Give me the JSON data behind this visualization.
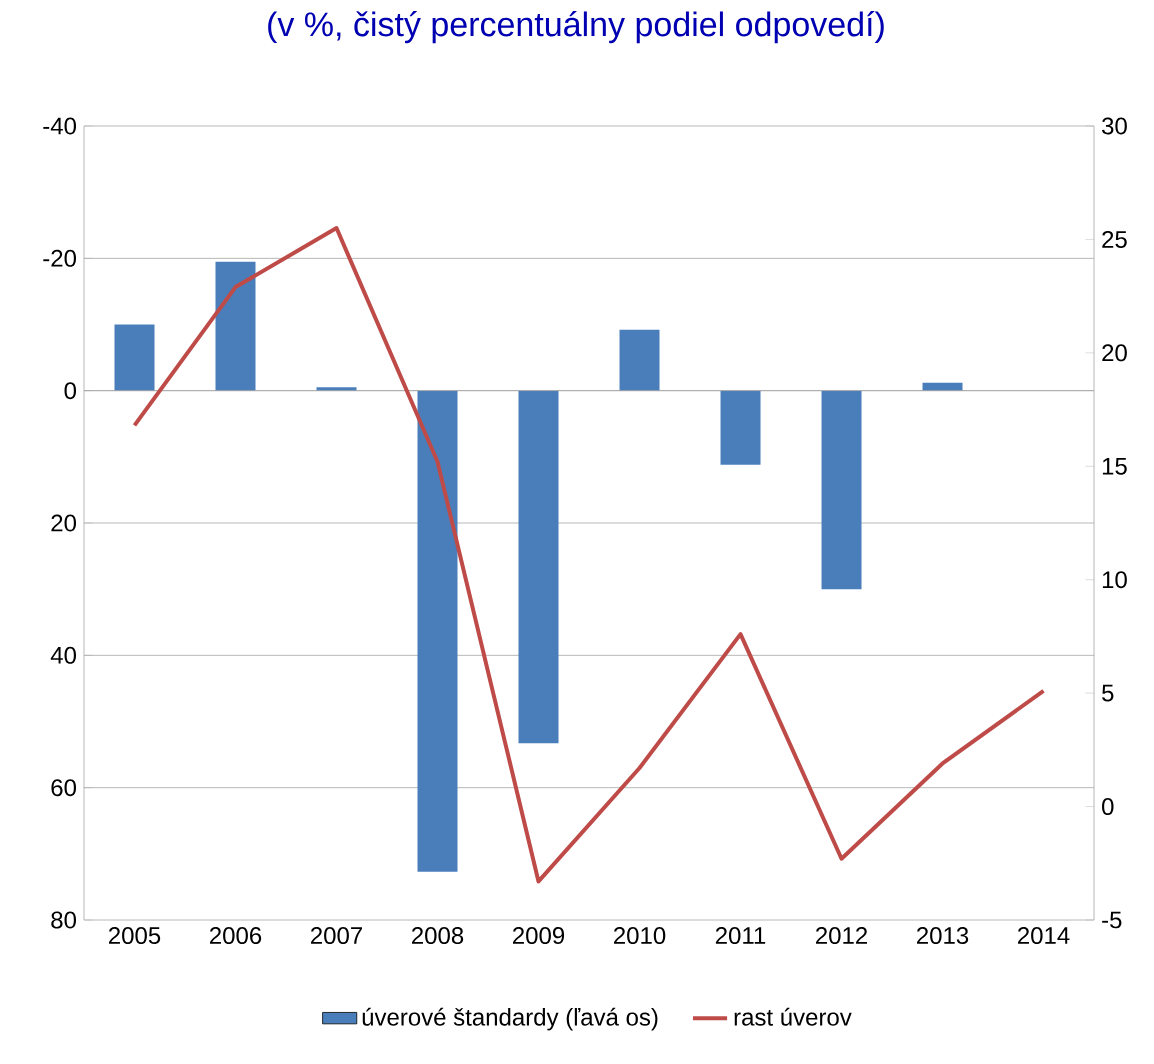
{
  "chart_data": {
    "type": "bar",
    "title": "(v %, čistý percentuálny podiel odpovedí)",
    "categories": [
      "2005",
      "2006",
      "2007",
      "2008",
      "2009",
      "2010",
      "2011",
      "2012",
      "2013",
      "2014"
    ],
    "series": [
      {
        "name": "úverové štandardy (ľavá os)",
        "color": "#4a7ebb",
        "values": [
          -10,
          -19.5,
          -0.5,
          72.7,
          53.3,
          -9.2,
          11.2,
          30,
          -1.2,
          null
        ]
      },
      {
        "name": "rast úverov",
        "type": "line",
        "axis": "y2",
        "color": "#be4b48",
        "values": [
          16.8,
          22.9,
          25.5,
          15.2,
          -3.3,
          1.7,
          7.6,
          -2.3,
          1.9,
          5.1
        ]
      }
    ],
    "ylim": [
      80,
      -40
    ],
    "yticks": [
      -40,
      -20,
      0,
      20,
      40,
      60,
      80
    ],
    "y2lim": [
      -5,
      30
    ],
    "y2ticks": [
      -5,
      0,
      5,
      10,
      15,
      20,
      25,
      30
    ],
    "grid": "y",
    "legend": "bottom",
    "marker": "none",
    "line_style": "solid"
  }
}
